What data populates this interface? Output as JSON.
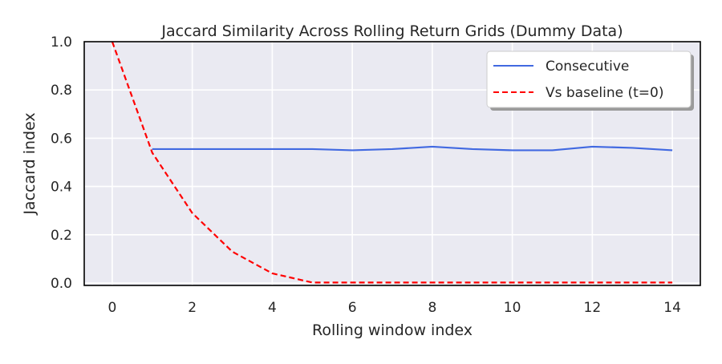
{
  "chart_data": {
    "type": "line",
    "title": "Jaccard Similarity Across Rolling Return Grids (Dummy Data)",
    "xlabel": "Rolling window index",
    "ylabel": "Jaccard index",
    "xlim": [
      -0.7,
      14.7
    ],
    "ylim": [
      -0.01,
      1.0
    ],
    "x_ticks": [
      0,
      2,
      4,
      6,
      8,
      10,
      12,
      14
    ],
    "y_ticks": [
      0.0,
      0.2,
      0.4,
      0.6,
      0.8,
      1.0
    ],
    "x_tick_labels": [
      "0",
      "2",
      "4",
      "6",
      "8",
      "10",
      "12",
      "14"
    ],
    "y_tick_labels": [
      "0.0",
      "0.2",
      "0.4",
      "0.6",
      "0.8",
      "1.0"
    ],
    "grid": true,
    "legend_position": "top-right",
    "series": [
      {
        "name": "Consecutive",
        "color": "#4169e1",
        "style": "solid",
        "x": [
          1,
          2,
          3,
          4,
          5,
          6,
          7,
          8,
          9,
          10,
          11,
          12,
          13,
          14
        ],
        "values": [
          0.555,
          0.555,
          0.555,
          0.555,
          0.555,
          0.55,
          0.555,
          0.565,
          0.555,
          0.55,
          0.55,
          0.565,
          0.56,
          0.55
        ]
      },
      {
        "name": "Vs baseline (t=0)",
        "color": "#ff0000",
        "style": "dashed",
        "x": [
          0,
          1,
          2,
          3,
          4,
          5,
          6,
          7,
          8,
          9,
          10,
          11,
          12,
          13,
          14
        ],
        "values": [
          1.0,
          0.54,
          0.29,
          0.13,
          0.04,
          0.002,
          0.002,
          0.002,
          0.002,
          0.002,
          0.002,
          0.002,
          0.002,
          0.002,
          0.002
        ]
      }
    ]
  }
}
